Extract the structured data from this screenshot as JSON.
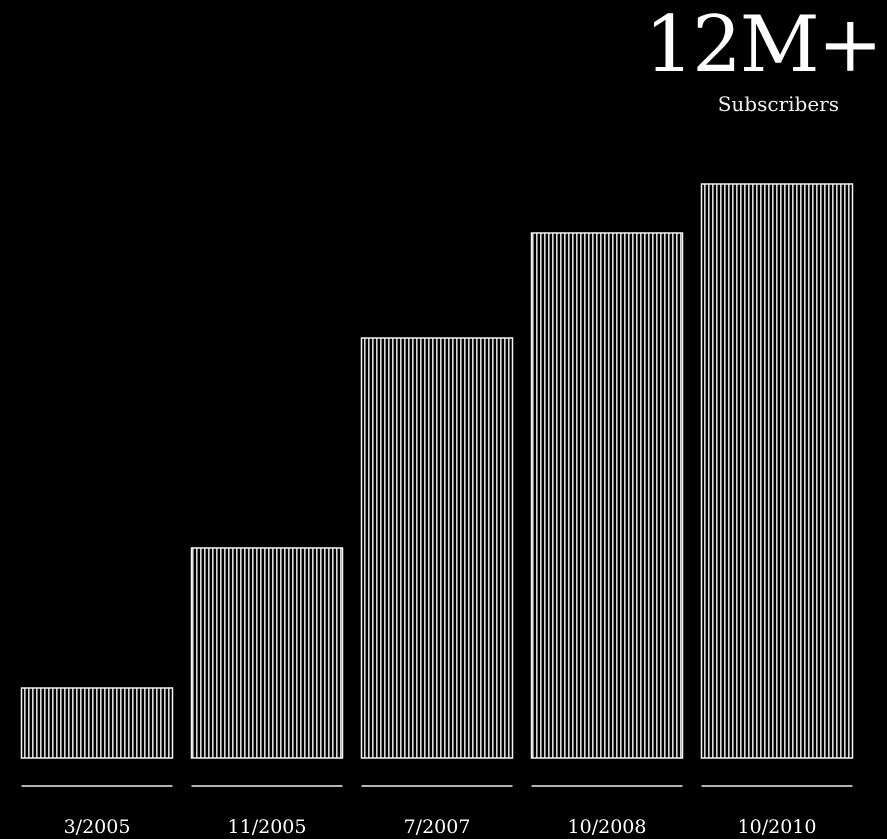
{
  "chart_data": {
    "type": "bar",
    "title": "12M+",
    "subtitle": "Subscribers",
    "categories": [
      "3/2005",
      "11/2005",
      "7/2007",
      "10/2008",
      "10/2010"
    ],
    "values": [
      1,
      3,
      6,
      7.5,
      8.2
    ],
    "xlabel": "",
    "ylabel": "",
    "ylim": [
      0,
      9
    ],
    "grid": false,
    "legend": "none",
    "colors": {
      "background": "#000000",
      "bar_stroke": "#f5f5f5",
      "bar_pattern": "#d9d9d9",
      "baseline": "#f0f0f0",
      "text": "#ffffff"
    }
  }
}
